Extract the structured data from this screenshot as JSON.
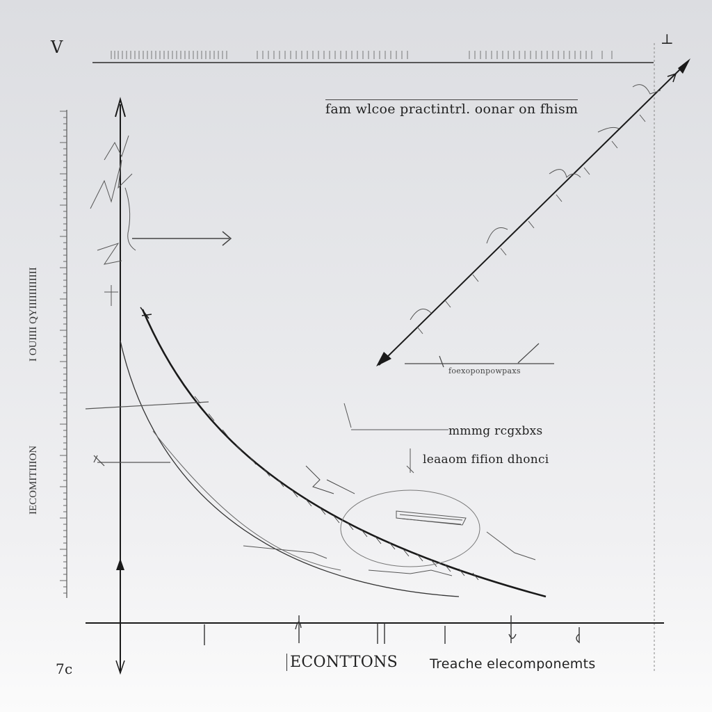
{
  "corner_top_left": "V",
  "corner_top_right": "⊥",
  "corner_bottom_left": "7c",
  "labels": {
    "top_annotation": "fam wlcoe practintrl. oonar on fhism",
    "mid_right_small": "foexoponpowpaxs",
    "callout_upper": "mmmg rcgxbxs",
    "callout_lower": "leaaom fifion dhonci",
    "x_axis_left": "ECONTTONS",
    "x_axis_right": "Treache elecomponemts",
    "y_axis_vertical_upper": "I OUIIII QYIIIIIIIIIIII",
    "y_axis_vertical_lower": "IECOMITIIION"
  },
  "colors": {
    "ink": "#1a1a1a",
    "faint": "#7a7a7a"
  }
}
